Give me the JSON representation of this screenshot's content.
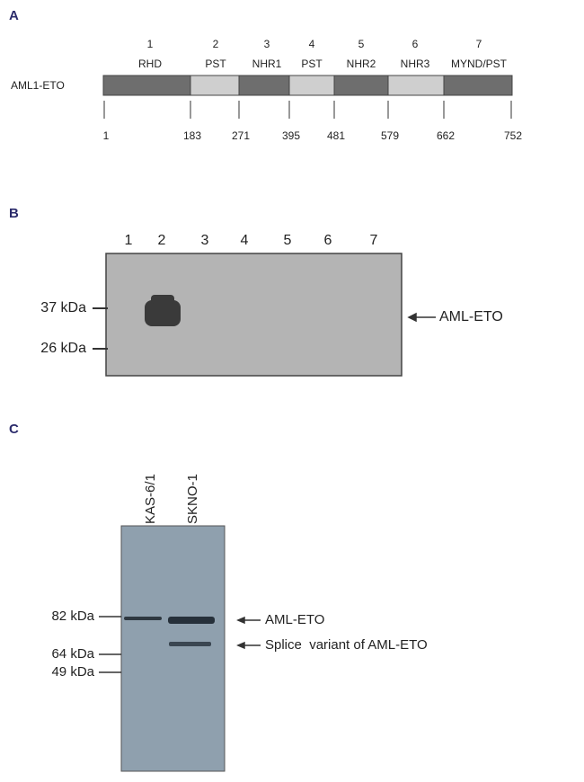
{
  "panel_a": {
    "label": "A",
    "construct": "AML1-ETO",
    "domains": [
      {
        "number": 1,
        "name": "RHD"
      },
      {
        "number": 2,
        "name": "PST"
      },
      {
        "number": 3,
        "name": "NHR1"
      },
      {
        "number": 4,
        "name": "PST"
      },
      {
        "number": 5,
        "name": "NHR2"
      },
      {
        "number": 6,
        "name": "NHR3"
      },
      {
        "number": 7,
        "name": "MYND/PST"
      }
    ],
    "positions": [
      1,
      183,
      271,
      395,
      481,
      579,
      662,
      752
    ]
  },
  "panel_b": {
    "label": "B",
    "lanes": [
      1,
      2,
      3,
      4,
      5,
      6,
      7
    ],
    "markers": [
      "37 kDa",
      "26 kDa"
    ],
    "band_label": "AML-ETO"
  },
  "panel_c": {
    "label": "C",
    "lanes": [
      "KAS-6/1",
      "SKNO-1"
    ],
    "markers": [
      "82 kDa",
      "64 kDa",
      "49 kDa"
    ],
    "band_labels": [
      "AML-ETO",
      "Splice  variant of AML-ETO"
    ]
  }
}
